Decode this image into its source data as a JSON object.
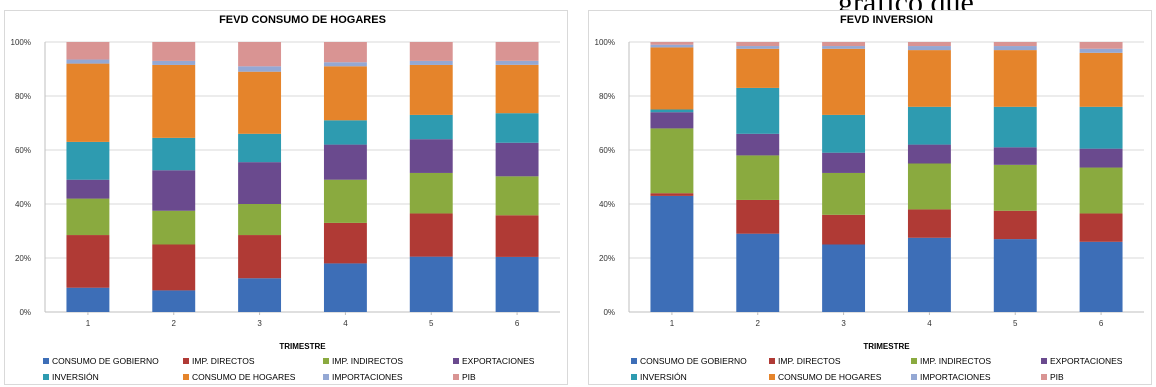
{
  "fragment_text": "gráfico que",
  "colors": {
    "CONSUMO DE GOBIERNO": "#3d6eb7",
    "IMP. DIRECTOS": "#b03a35",
    "IMP. INDIRECTOS": "#8aaa3f",
    "EXPORTACIONES": "#6a4a8e",
    "INVERSIÓN": "#2e9bb0",
    "CONSUMO DE HOGARES": "#e5842b",
    "IMPORTACIONES": "#94a8d4",
    "PIB": "#d99493"
  },
  "chart_data": [
    {
      "type": "bar",
      "stacked": "percent",
      "title": "FEVD CONSUMO DE HOGARES",
      "xlabel": "TRIMESTRE",
      "ylabel": "",
      "ylim": [
        0,
        100
      ],
      "yticks": [
        "0%",
        "20%",
        "40%",
        "60%",
        "80%",
        "100%"
      ],
      "categories": [
        "1",
        "2",
        "3",
        "4",
        "5",
        "6"
      ],
      "legend": "bottom",
      "series": [
        {
          "name": "CONSUMO DE GOBIERNO",
          "values": [
            9,
            8,
            12.5,
            18,
            20.5,
            20.5
          ]
        },
        {
          "name": "IMP. DIRECTOS",
          "values": [
            19.5,
            17,
            16,
            15,
            16,
            15.5
          ]
        },
        {
          "name": "IMP. INDIRECTOS",
          "values": [
            13.5,
            12.5,
            11.5,
            16,
            15,
            14.5
          ]
        },
        {
          "name": "EXPORTACIONES",
          "values": [
            7,
            15,
            15.5,
            13,
            12.5,
            12.5
          ]
        },
        {
          "name": "INVERSIÓN",
          "values": [
            14,
            12,
            10.5,
            9,
            9,
            11
          ]
        },
        {
          "name": "CONSUMO DE HOGARES",
          "values": [
            29,
            27,
            23,
            20,
            18.5,
            18
          ]
        },
        {
          "name": "IMPORTACIONES",
          "values": [
            1.5,
            1.5,
            2,
            1.5,
            1.5,
            1.5
          ]
        },
        {
          "name": "PIB",
          "values": [
            6.5,
            7,
            9,
            7.5,
            7,
            7
          ]
        }
      ]
    },
    {
      "type": "bar",
      "stacked": "percent",
      "title": "FEVD INVERSION",
      "xlabel": "TRIMESTRE",
      "ylabel": "",
      "ylim": [
        0,
        100
      ],
      "yticks": [
        "0%",
        "20%",
        "40%",
        "60%",
        "80%",
        "100%"
      ],
      "categories": [
        "1",
        "2",
        "3",
        "4",
        "5",
        "6"
      ],
      "legend": "bottom",
      "series": [
        {
          "name": "CONSUMO DE GOBIERNO",
          "values": [
            43,
            29,
            25,
            27.5,
            27,
            26
          ]
        },
        {
          "name": "IMP. DIRECTOS",
          "values": [
            1,
            12.5,
            11,
            10.5,
            10.5,
            10.5
          ]
        },
        {
          "name": "IMP. INDIRECTOS",
          "values": [
            24,
            16.5,
            15.5,
            17,
            17,
            17
          ]
        },
        {
          "name": "EXPORTACIONES",
          "values": [
            6,
            8,
            7.5,
            7,
            6.5,
            7
          ]
        },
        {
          "name": "INVERSIÓN",
          "values": [
            1,
            17,
            14,
            14,
            15,
            15.5
          ]
        },
        {
          "name": "CONSUMO DE HOGARES",
          "values": [
            23,
            14.5,
            24.5,
            21,
            21,
            20
          ]
        },
        {
          "name": "IMPORTACIONES",
          "values": [
            1,
            1,
            1,
            1.5,
            1.5,
            1.5
          ]
        },
        {
          "name": "PIB",
          "values": [
            1,
            1.5,
            1.5,
            1.5,
            1.5,
            2.5
          ]
        }
      ]
    }
  ]
}
